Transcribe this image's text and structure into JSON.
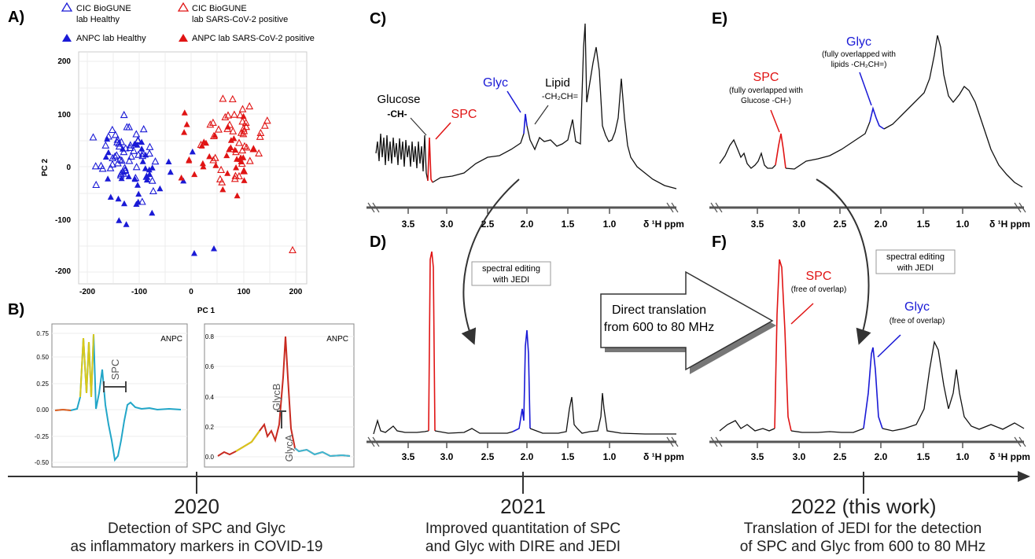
{
  "panels": {
    "a": {
      "label": "A)",
      "legend": {
        "cic_healthy_1": "CIC BioGUNE",
        "cic_healthy_2": "lab Healthy",
        "cic_pos_1": "CIC BioGUNE",
        "cic_pos_2": "lab SARS-CoV-2 positive",
        "anpc_healthy": "ANPC lab Healthy",
        "anpc_pos": "ANPC lab SARS-CoV-2 positive"
      },
      "xlabel": "PC 1",
      "ylabel": "PC 2",
      "xticks": [
        "-200",
        "-100",
        "0",
        "100",
        "200"
      ],
      "yticks": [
        "200",
        "100",
        "0",
        "-100",
        "-200"
      ]
    },
    "b": {
      "label": "B)",
      "left": {
        "title": "ANPC",
        "marker": "SPC",
        "yticks": [
          "0.75",
          "0.50",
          "0.25",
          "0.00",
          "-0.25",
          "-0.50"
        ]
      },
      "right": {
        "title": "ANPC",
        "marker1": "GlycB",
        "marker2": "GlycA",
        "yticks": [
          "0.8",
          "0.6",
          "0.4",
          "0.2",
          "0.0"
        ]
      }
    },
    "c": {
      "label": "C)",
      "glucose": "Glucose",
      "glucose_sub": "-CH-",
      "spc": "SPC",
      "glyc": "Glyc",
      "lipid": "Lipid",
      "lipid_sub": "-CH₂CH="
    },
    "d": {
      "label": "D)",
      "editing1": "spectral editing",
      "editing2": "with JEDI"
    },
    "e": {
      "label": "E)",
      "glyc": "Glyc",
      "glyc_note1": "(fully overlapped with",
      "glyc_note2": "lipids -CH₂CH=)",
      "spc": "SPC",
      "spc_note1": "(fully overlapped with",
      "spc_note2": "Glucose -CH-)"
    },
    "f": {
      "label": "F)",
      "editing1": "spectral editing",
      "editing2": "with JEDI",
      "spc": "SPC",
      "spc_note": "(free of overlap)",
      "glyc": "Glyc",
      "glyc_note": "(free of overlap)"
    },
    "arrow": {
      "line1": "Direct translation",
      "line2": "from 600 to 80 MHz"
    }
  },
  "ppm_axis": {
    "ticks": [
      "3.5",
      "3.0",
      "2.5",
      "2.0",
      "1.5",
      "1.0"
    ],
    "label": "δ ¹H ppm"
  },
  "timeline": [
    {
      "year": "2020",
      "caption1": "Detection of SPC and Glyc",
      "caption2": "as inflammatory markers in COVID-19"
    },
    {
      "year": "2021",
      "caption1": "Improved quantitation of SPC",
      "caption2": "and Glyc with DIRE and JEDI"
    },
    {
      "year": "2022 (this work)",
      "caption1": "Translation of JEDI for the detection",
      "caption2": "of SPC and Glyc from 600 to 80 MHz"
    }
  ],
  "colors": {
    "blue": "#1a1ad6",
    "red": "#e01414",
    "black": "#111111"
  }
}
